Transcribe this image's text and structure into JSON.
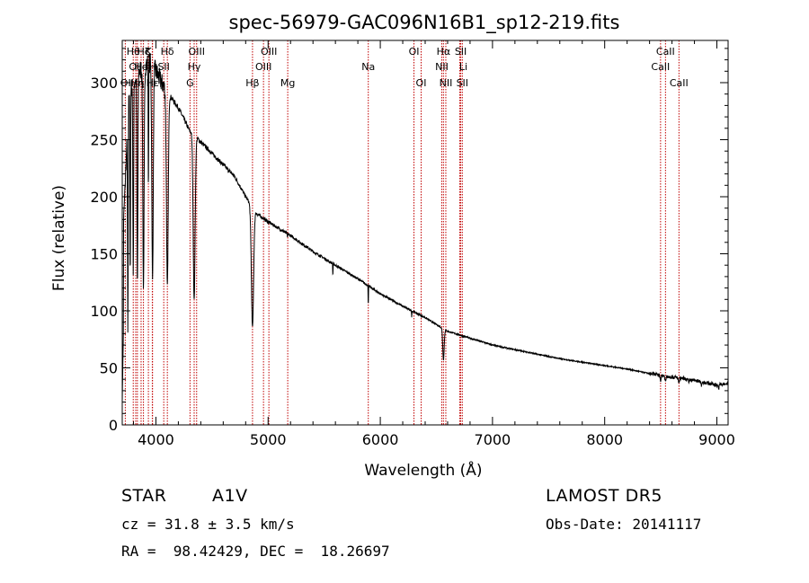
{
  "chart_data": {
    "type": "line",
    "title": "spec-56979-GAC096N16B1_sp12-219.fits",
    "xlabel": "Wavelength (Å)",
    "ylabel": "Flux (relative)",
    "xlim": [
      3700,
      9100
    ],
    "ylim": [
      0,
      337
    ],
    "xticks": [
      4000,
      5000,
      6000,
      7000,
      8000,
      9000
    ],
    "yticks": [
      0,
      50,
      100,
      150,
      200,
      250,
      300
    ],
    "grid": false,
    "continuum": [
      [
        3700,
        150
      ],
      [
        3760,
        290
      ],
      [
        3800,
        300
      ],
      [
        3850,
        310
      ],
      [
        3900,
        315
      ],
      [
        3950,
        318
      ],
      [
        4000,
        310
      ],
      [
        4050,
        300
      ],
      [
        4100,
        292
      ],
      [
        4150,
        285
      ],
      [
        4200,
        278
      ],
      [
        4250,
        268
      ],
      [
        4300,
        258
      ],
      [
        4400,
        248
      ],
      [
        4500,
        238
      ],
      [
        4600,
        228
      ],
      [
        4700,
        218
      ],
      [
        4800,
        200
      ],
      [
        4900,
        185
      ],
      [
        5000,
        178
      ],
      [
        5200,
        166
      ],
      [
        5400,
        152
      ],
      [
        5600,
        140
      ],
      [
        5800,
        128
      ],
      [
        6000,
        115
      ],
      [
        6200,
        104
      ],
      [
        6400,
        94
      ],
      [
        6600,
        82
      ],
      [
        6800,
        76
      ],
      [
        7000,
        70
      ],
      [
        7200,
        66
      ],
      [
        7400,
        62
      ],
      [
        7600,
        58
      ],
      [
        7800,
        55
      ],
      [
        8000,
        52
      ],
      [
        8200,
        49
      ],
      [
        8400,
        45
      ],
      [
        8600,
        42
      ],
      [
        8800,
        39
      ],
      [
        9000,
        35
      ],
      [
        9100,
        36
      ]
    ],
    "absorption": [
      {
        "center": 3750,
        "depth": 0.7,
        "width": 4
      },
      {
        "center": 3771,
        "depth": 0.55,
        "width": 4
      },
      {
        "center": 3798,
        "depth": 0.55,
        "width": 5
      },
      {
        "center": 3835,
        "depth": 0.6,
        "width": 6
      },
      {
        "center": 3889,
        "depth": 0.62,
        "width": 8
      },
      {
        "center": 3933,
        "depth": 0.35,
        "width": 3
      },
      {
        "center": 3970,
        "depth": 0.6,
        "width": 9
      },
      {
        "center": 4102,
        "depth": 0.58,
        "width": 11
      },
      {
        "center": 4341,
        "depth": 0.57,
        "width": 12
      },
      {
        "center": 4861,
        "depth": 0.55,
        "width": 14
      },
      {
        "center": 5172,
        "depth": 0.02,
        "width": 3
      },
      {
        "center": 5577,
        "depth": 0.08,
        "width": 2
      },
      {
        "center": 5893,
        "depth": 0.15,
        "width": 2
      },
      {
        "center": 6280,
        "depth": 0.05,
        "width": 2
      },
      {
        "center": 6563,
        "depth": 0.32,
        "width": 9
      },
      {
        "center": 8498,
        "depth": 0.1,
        "width": 6
      },
      {
        "center": 8542,
        "depth": 0.12,
        "width": 6
      },
      {
        "center": 8662,
        "depth": 0.12,
        "width": 6
      },
      {
        "center": 8750,
        "depth": 0.08,
        "width": 5
      },
      {
        "center": 8863,
        "depth": 0.08,
        "width": 5
      },
      {
        "center": 9015,
        "depth": 0.1,
        "width": 5
      }
    ],
    "line_markers": [
      {
        "wave": 3727,
        "label": "OII",
        "row": 2,
        "dx": 2
      },
      {
        "wave": 3798,
        "label": "Hθ",
        "row": 0,
        "dx": 0
      },
      {
        "wave": 3820,
        "label": "OII",
        "row": 1,
        "dx": 0
      },
      {
        "wave": 3835,
        "label": "Hη",
        "row": 2,
        "dx": 0
      },
      {
        "wave": 3868,
        "label": "He",
        "row": 1,
        "dx": 0
      },
      {
        "wave": 3889,
        "label": "Hζ",
        "row": 0,
        "dx": 0
      },
      {
        "wave": 3933,
        "label": "K",
        "row": 0,
        "dx": 0
      },
      {
        "wave": 3968,
        "label": "H",
        "row": 1,
        "dx": 0
      },
      {
        "wave": 3970,
        "label": "Hε",
        "row": 2,
        "dx": 0
      },
      {
        "wave": 4070,
        "label": "SII",
        "row": 1,
        "dx": 0
      },
      {
        "wave": 4102,
        "label": "Hδ",
        "row": 0,
        "dx": 0
      },
      {
        "wave": 4304,
        "label": "G",
        "row": 2,
        "dx": 0
      },
      {
        "wave": 4341,
        "label": "Hγ",
        "row": 1,
        "dx": 0
      },
      {
        "wave": 4363,
        "label": "OIII",
        "row": 0,
        "dx": 0
      },
      {
        "wave": 4861,
        "label": "Hβ",
        "row": 2,
        "dx": 0
      },
      {
        "wave": 4959,
        "label": "OIII",
        "row": 1,
        "dx": 0
      },
      {
        "wave": 5007,
        "label": "OIII",
        "row": 0,
        "dx": 0
      },
      {
        "wave": 5175,
        "label": "Mg",
        "row": 2,
        "dx": 0
      },
      {
        "wave": 5893,
        "label": "Na",
        "row": 1,
        "dx": 0
      },
      {
        "wave": 6300,
        "label": "OI",
        "row": 0,
        "dx": 0
      },
      {
        "wave": 6364,
        "label": "OI",
        "row": 2,
        "dx": 0
      },
      {
        "wave": 6548,
        "label": "NII",
        "row": 1,
        "dx": 0
      },
      {
        "wave": 6563,
        "label": "Hα",
        "row": 0,
        "dx": 0
      },
      {
        "wave": 6584,
        "label": "NII",
        "row": 2,
        "dx": 0
      },
      {
        "wave": 6708,
        "label": "Li",
        "row": 1,
        "dx": 4
      },
      {
        "wave": 6717,
        "label": "SII",
        "row": 0,
        "dx": 0
      },
      {
        "wave": 6731,
        "label": "SII",
        "row": 2,
        "dx": 0
      },
      {
        "wave": 8498,
        "label": "CaII",
        "row": 1,
        "dx": 0
      },
      {
        "wave": 8542,
        "label": "CaII",
        "row": 0,
        "dx": 0
      },
      {
        "wave": 8662,
        "label": "CaII",
        "row": 2,
        "dx": 0
      }
    ]
  },
  "info": {
    "class": "STAR",
    "subclass": "A1V",
    "survey": "LAMOST DR5",
    "cz": "cz = 31.8 ± 3.5 km/s",
    "obs_date": "Obs-Date: 20141117",
    "coords": "RA =  98.42429, DEC =  18.26697"
  }
}
